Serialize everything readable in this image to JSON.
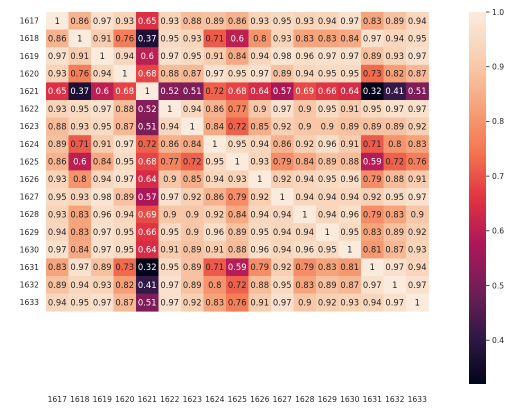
{
  "chart_data": {
    "type": "heatmap",
    "title": "",
    "xlabel": "",
    "ylabel": "",
    "labels": [
      "1617",
      "1618",
      "1619",
      "1620",
      "1621",
      "1622",
      "1623",
      "1624",
      "1625",
      "1626",
      "1627",
      "1628",
      "1629",
      "1630",
      "1631",
      "1632",
      "1633"
    ],
    "matrix": [
      [
        1,
        0.86,
        0.97,
        0.93,
        0.65,
        0.93,
        0.88,
        0.89,
        0.86,
        0.93,
        0.95,
        0.93,
        0.94,
        0.97,
        0.83,
        0.89,
        0.94
      ],
      [
        0.86,
        1,
        0.91,
        0.76,
        0.37,
        0.95,
        0.93,
        0.71,
        0.6,
        0.8,
        0.93,
        0.83,
        0.83,
        0.84,
        0.97,
        0.94,
        0.95
      ],
      [
        0.97,
        0.91,
        1,
        0.94,
        0.6,
        0.97,
        0.95,
        0.91,
        0.84,
        0.94,
        0.98,
        0.96,
        0.97,
        0.97,
        0.89,
        0.93,
        0.97
      ],
      [
        0.93,
        0.76,
        0.94,
        1,
        0.68,
        0.88,
        0.87,
        0.97,
        0.95,
        0.97,
        0.89,
        0.94,
        0.95,
        0.95,
        0.73,
        0.82,
        0.87
      ],
      [
        0.65,
        0.37,
        0.6,
        0.68,
        1,
        0.52,
        0.51,
        0.72,
        0.68,
        0.64,
        0.57,
        0.69,
        0.66,
        0.64,
        0.32,
        0.41,
        0.51
      ],
      [
        0.93,
        0.95,
        0.97,
        0.88,
        0.52,
        1,
        0.94,
        0.86,
        0.77,
        0.9,
        0.97,
        0.9,
        0.95,
        0.91,
        0.95,
        0.97,
        0.97
      ],
      [
        0.88,
        0.93,
        0.95,
        0.87,
        0.51,
        0.94,
        1,
        0.84,
        0.72,
        0.85,
        0.92,
        0.9,
        0.9,
        0.89,
        0.89,
        0.89,
        0.92
      ],
      [
        0.89,
        0.71,
        0.91,
        0.97,
        0.72,
        0.86,
        0.84,
        1,
        0.95,
        0.94,
        0.86,
        0.92,
        0.96,
        0.91,
        0.71,
        0.8,
        0.83
      ],
      [
        0.86,
        0.6,
        0.84,
        0.95,
        0.68,
        0.77,
        0.72,
        0.95,
        1,
        0.93,
        0.79,
        0.84,
        0.89,
        0.88,
        0.59,
        0.72,
        0.76
      ],
      [
        0.93,
        0.8,
        0.94,
        0.97,
        0.64,
        0.9,
        0.85,
        0.94,
        0.93,
        1,
        0.92,
        0.94,
        0.95,
        0.96,
        0.79,
        0.88,
        0.91
      ],
      [
        0.95,
        0.93,
        0.98,
        0.89,
        0.57,
        0.97,
        0.92,
        0.86,
        0.79,
        0.92,
        1,
        0.94,
        0.94,
        0.94,
        0.92,
        0.95,
        0.97
      ],
      [
        0.93,
        0.83,
        0.96,
        0.94,
        0.69,
        0.9,
        0.9,
        0.92,
        0.84,
        0.94,
        0.94,
        1,
        0.94,
        0.96,
        0.79,
        0.83,
        0.9
      ],
      [
        0.94,
        0.83,
        0.97,
        0.95,
        0.66,
        0.95,
        0.9,
        0.96,
        0.89,
        0.95,
        0.94,
        0.94,
        1,
        0.95,
        0.83,
        0.89,
        0.92
      ],
      [
        0.97,
        0.84,
        0.97,
        0.95,
        0.64,
        0.91,
        0.89,
        0.91,
        0.88,
        0.96,
        0.94,
        0.96,
        0.95,
        1,
        0.81,
        0.87,
        0.93
      ],
      [
        0.83,
        0.97,
        0.89,
        0.73,
        0.32,
        0.95,
        0.89,
        0.71,
        0.59,
        0.79,
        0.92,
        0.79,
        0.83,
        0.81,
        1,
        0.97,
        0.94
      ],
      [
        0.89,
        0.94,
        0.93,
        0.82,
        0.41,
        0.97,
        0.89,
        0.8,
        0.72,
        0.88,
        0.95,
        0.83,
        0.89,
        0.87,
        0.97,
        1,
        0.97
      ],
      [
        0.94,
        0.95,
        0.97,
        0.87,
        0.51,
        0.97,
        0.92,
        0.83,
        0.76,
        0.91,
        0.97,
        0.9,
        0.92,
        0.93,
        0.94,
        0.97,
        1
      ]
    ],
    "colorbar": {
      "ticks": [
        "1.0",
        "0.9",
        "0.8",
        "0.7",
        "0.6",
        "0.5",
        "0.4"
      ],
      "tick_values": [
        1.0,
        0.9,
        0.8,
        0.7,
        0.6,
        0.5,
        0.4
      ],
      "range": [
        0.32,
        1.0
      ],
      "colormap": "rocket"
    },
    "grid": false,
    "legend": "colorbar-right"
  }
}
